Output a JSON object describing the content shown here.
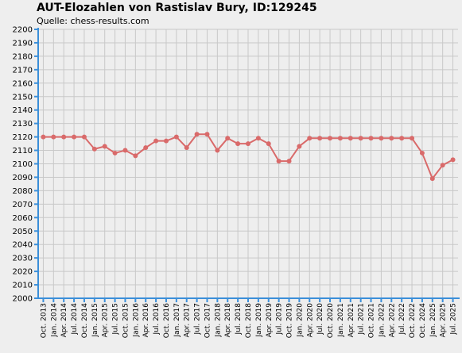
{
  "chart_data": {
    "type": "line",
    "title": "AUT-Elozahlen von Rastislav Bury, ID:129245",
    "subtitle": "Quelle: chess-results.com",
    "xlabel": "",
    "ylabel": "",
    "ylim": [
      2000,
      2200
    ],
    "ystep": 10,
    "grid": true,
    "legend": "none",
    "colors": {
      "line": "#d96a6a",
      "axis": "#3b8fd9",
      "grid": "#c8c8c8",
      "plot_background": "#eeeeee"
    },
    "categories": [
      "Oct. 2013",
      "Jan. 2014",
      "Apr. 2014",
      "Jul. 2014",
      "Oct. 2014",
      "Jan. 2015",
      "Apr. 2015",
      "Jul. 2015",
      "Oct. 2015",
      "Jan. 2016",
      "Apr. 2016",
      "Jul. 2016",
      "Oct. 2016",
      "Jan. 2017",
      "Apr. 2017",
      "Jul. 2017",
      "Oct. 2017",
      "Jan. 2018",
      "Apr. 2018",
      "Jul. 2018",
      "Oct. 2018",
      "Jan. 2019",
      "Apr. 2019",
      "Jul. 2019",
      "Oct. 2019",
      "Jan. 2020",
      "Apr. 2020",
      "Jul. 2020",
      "Oct. 2020",
      "Jan. 2021",
      "Apr. 2021",
      "Jul. 2021",
      "Oct. 2021",
      "Jan. 2022",
      "Apr. 2022",
      "Jul. 2022",
      "Oct. 2022",
      "Oct. 2024",
      "Jan. 2025",
      "Apr. 2025",
      "Jul. 2025"
    ],
    "values": [
      2120,
      2120,
      2120,
      2120,
      2120,
      2111,
      2113,
      2108,
      2110,
      2106,
      2112,
      2117,
      2117,
      2120,
      2112,
      2122,
      2122,
      2110,
      2119,
      2115,
      2115,
      2119,
      2115,
      2102,
      2102,
      2113,
      2119,
      2119,
      2119,
      2119,
      2119,
      2119,
      2119,
      2119,
      2119,
      2119,
      2119,
      2108,
      2089,
      2099,
      2103
    ]
  }
}
